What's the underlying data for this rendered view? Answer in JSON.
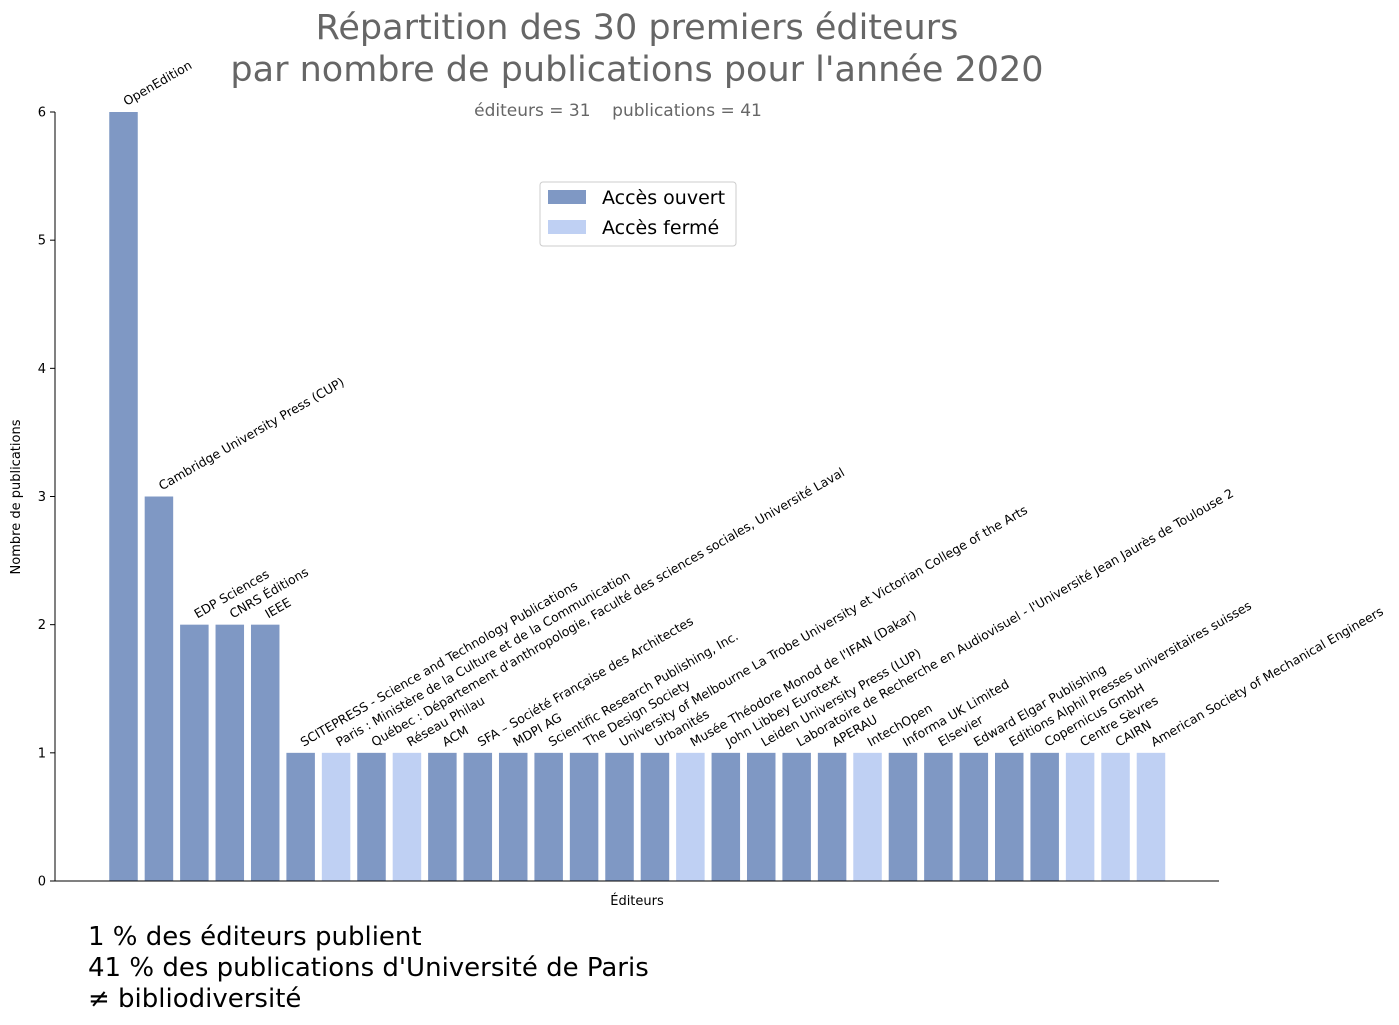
{
  "chart_data": {
    "type": "bar",
    "title_line1": "Répartition des 30 premiers éditeurs",
    "title_line2": "par nombre de publications pour l'année 2020",
    "subtitle": "éditeurs = 31    publications = 41",
    "xlabel": "Éditeurs",
    "ylabel": "Nombre de publications",
    "ylim": [
      0,
      6
    ],
    "yticks": [
      "0",
      "1",
      "2",
      "3",
      "4",
      "5",
      "6"
    ],
    "grid": false,
    "legend_placement": "upper-center",
    "series": [
      {
        "name": "Accès ouvert",
        "color": "#7f98c4"
      },
      {
        "name": "Accès fermé",
        "color": "#bfd0f3"
      }
    ],
    "categories": [
      "OpenEdition",
      "Cambridge University Press (CUP)",
      "EDP Sciences",
      "CNRS Éditions",
      "IEEE",
      "SCITEPRESS - Science and Technology Publications",
      "Paris : Ministère de la Culture et de la Communication",
      "Québec : Département d'anthropologie, Faculté des sciences sociales, Université Laval",
      "Réseau Philau",
      "ACM",
      "SFA – Société Française des Architectes",
      "MDPI AG",
      "Scientific Research Publishing, Inc.",
      "The Design Society",
      "University of Melbourne La Trobe University et Victorian College of the Arts",
      "Urbanités",
      "Musée Théodore Monod de l'IFAN (Dakar)",
      "John Libbey Eurotext",
      "Leiden University Press (LUP)",
      "Laboratoire de Recherche en Audiovisuel - l'Université Jean Jaurès de Toulouse 2",
      "APERAU",
      "IntechOpen",
      "Informa UK Limited",
      "Elsevier",
      "Edward Elgar Publishing",
      "Editions Alphil Presses universitaires suisses",
      "Copernicus GmbH",
      "Centre Sèvres",
      "CAIRN",
      "American Society of Mechanical Engineers"
    ],
    "values": [
      6,
      3,
      2,
      2,
      2,
      1,
      1,
      1,
      1,
      1,
      1,
      1,
      1,
      1,
      1,
      1,
      1,
      1,
      1,
      1,
      1,
      1,
      1,
      1,
      1,
      1,
      1,
      1,
      1,
      1
    ],
    "access": [
      "Accès ouvert",
      "Accès ouvert",
      "Accès ouvert",
      "Accès ouvert",
      "Accès ouvert",
      "Accès ouvert",
      "Accès fermé",
      "Accès ouvert",
      "Accès fermé",
      "Accès ouvert",
      "Accès ouvert",
      "Accès ouvert",
      "Accès ouvert",
      "Accès ouvert",
      "Accès ouvert",
      "Accès ouvert",
      "Accès fermé",
      "Accès ouvert",
      "Accès ouvert",
      "Accès ouvert",
      "Accès ouvert",
      "Accès fermé",
      "Accès ouvert",
      "Accès ouvert",
      "Accès ouvert",
      "Accès ouvert",
      "Accès ouvert",
      "Accès fermé",
      "Accès fermé",
      "Accès fermé"
    ]
  },
  "footer": {
    "line1": "1 % des éditeurs publient",
    "line2": "41 % des publications d'Université de Paris",
    "line3": "≠ bibliodiversité"
  }
}
